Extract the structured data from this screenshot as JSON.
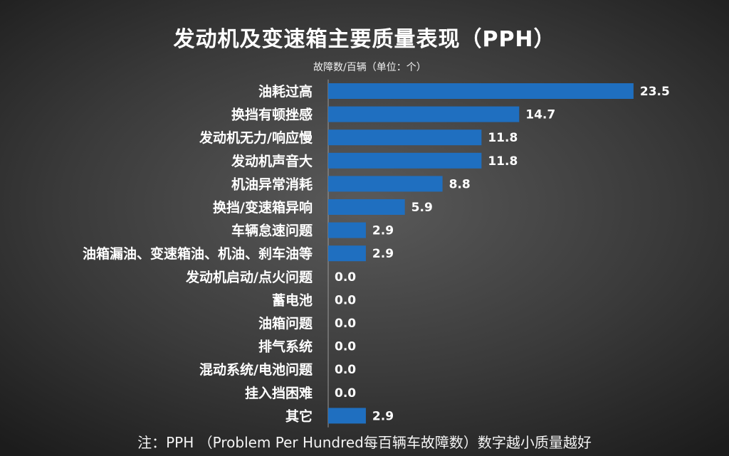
{
  "chart_data": {
    "type": "bar",
    "orientation": "horizontal",
    "title": "发动机及变速箱主要质量表现（PPH）",
    "unit_label": "故障数/百辆（单位：个）",
    "categories": [
      "油耗过高",
      "换挡有顿挫感",
      "发动机无力/响应慢",
      "发动机声音大",
      "机油异常消耗",
      "换挡/变速箱异响",
      "车辆怠速问题",
      "油箱漏油、变速箱油、机油、刹车油等",
      "发动机启动/点火问题",
      "蓄电池",
      "油箱问题",
      "排气系统",
      "混动系统/电池问题",
      "挂入挡困难",
      "其它"
    ],
    "values": [
      23.5,
      14.7,
      11.8,
      11.8,
      8.8,
      5.9,
      2.9,
      2.9,
      0.0,
      0.0,
      0.0,
      0.0,
      0.0,
      0.0,
      2.9
    ],
    "value_labels": [
      "23.5",
      "14.7",
      "11.8",
      "11.8",
      "8.8",
      "5.9",
      "2.9",
      "2.9",
      "0.0",
      "0.0",
      "0.0",
      "0.0",
      "0.0",
      "0.0",
      "2.9"
    ],
    "bar_color": "#1f6fc0",
    "note": "注：PPH （Problem Per Hundred每百辆车故障数）数字越小质量越好"
  }
}
